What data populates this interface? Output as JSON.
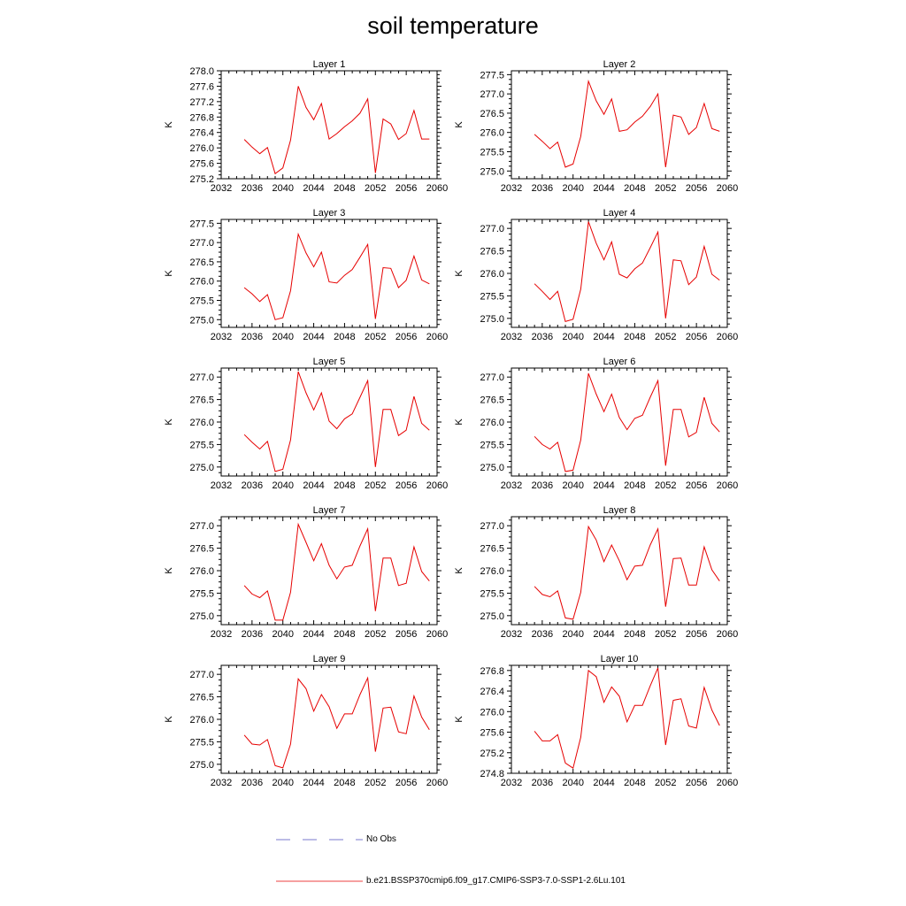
{
  "title": "soil temperature",
  "chart_data": [
    {
      "type": "line",
      "title": "Layer 1",
      "ylabel": "K",
      "xlim": [
        2032,
        2060
      ],
      "ylim": [
        275.2,
        278.0
      ],
      "xticks": [
        "2032",
        "2036",
        "2040",
        "2044",
        "2048",
        "2052",
        "2056",
        "2060"
      ],
      "yticks": [
        "275.2",
        "275.6",
        "276.0",
        "276.4",
        "276.8",
        "277.2",
        "277.6",
        "278.0"
      ],
      "x": [
        2035,
        2036,
        2037,
        2038,
        2039,
        2040,
        2041,
        2042,
        2043,
        2044,
        2045,
        2046,
        2047,
        2048,
        2049,
        2050,
        2051,
        2052,
        2053,
        2054,
        2055,
        2056,
        2057,
        2058,
        2059
      ],
      "values": [
        276.22,
        276.02,
        275.85,
        276.01,
        275.33,
        275.48,
        276.2,
        277.6,
        277.05,
        276.73,
        277.15,
        276.23,
        276.37,
        276.55,
        276.7,
        276.9,
        277.27,
        275.35,
        276.75,
        276.62,
        276.22,
        276.37,
        276.97,
        276.23,
        276.23
      ]
    },
    {
      "type": "line",
      "title": "Layer 2",
      "ylabel": "K",
      "xlim": [
        2032,
        2060
      ],
      "ylim": [
        274.8,
        277.6
      ],
      "xticks": [
        "2032",
        "2036",
        "2040",
        "2044",
        "2048",
        "2052",
        "2056",
        "2060"
      ],
      "yticks": [
        "275.0",
        "275.5",
        "276.0",
        "276.5",
        "277.0",
        "277.5"
      ],
      "x": [
        2035,
        2036,
        2037,
        2038,
        2039,
        2040,
        2041,
        2042,
        2043,
        2044,
        2045,
        2046,
        2047,
        2048,
        2049,
        2050,
        2051,
        2052,
        2053,
        2054,
        2055,
        2056,
        2057,
        2058,
        2059
      ],
      "values": [
        275.95,
        275.77,
        275.58,
        275.75,
        275.1,
        275.18,
        275.9,
        277.33,
        276.82,
        276.47,
        276.87,
        276.03,
        276.07,
        276.27,
        276.42,
        276.67,
        277.0,
        275.1,
        276.45,
        276.4,
        275.95,
        276.13,
        276.75,
        276.1,
        276.03
      ]
    },
    {
      "type": "line",
      "title": "Layer 3",
      "ylabel": "K",
      "xlim": [
        2032,
        2060
      ],
      "ylim": [
        274.8,
        277.6
      ],
      "xticks": [
        "2032",
        "2036",
        "2040",
        "2044",
        "2048",
        "2052",
        "2056",
        "2060"
      ],
      "yticks": [
        "275.0",
        "275.5",
        "276.0",
        "276.5",
        "277.0",
        "277.5"
      ],
      "x": [
        2035,
        2036,
        2037,
        2038,
        2039,
        2040,
        2041,
        2042,
        2043,
        2044,
        2045,
        2046,
        2047,
        2048,
        2049,
        2050,
        2051,
        2052,
        2053,
        2054,
        2055,
        2056,
        2057,
        2058,
        2059
      ],
      "values": [
        275.83,
        275.67,
        275.47,
        275.65,
        275.0,
        275.05,
        275.75,
        277.22,
        276.73,
        276.37,
        276.75,
        275.98,
        275.95,
        276.15,
        276.3,
        276.62,
        276.95,
        275.02,
        276.35,
        276.33,
        275.83,
        276.02,
        276.65,
        276.03,
        275.93
      ]
    },
    {
      "type": "line",
      "title": "Layer 4",
      "ylabel": "K",
      "xlim": [
        2032,
        2060
      ],
      "ylim": [
        274.8,
        277.2
      ],
      "xticks": [
        "2032",
        "2036",
        "2040",
        "2044",
        "2048",
        "2052",
        "2056",
        "2060"
      ],
      "yticks": [
        "275.0",
        "275.5",
        "276.0",
        "276.5",
        "277.0"
      ],
      "x": [
        2035,
        2036,
        2037,
        2038,
        2039,
        2040,
        2041,
        2042,
        2043,
        2044,
        2045,
        2046,
        2047,
        2048,
        2049,
        2050,
        2051,
        2052,
        2053,
        2054,
        2055,
        2056,
        2057,
        2058,
        2059
      ],
      "values": [
        275.77,
        275.6,
        275.42,
        275.6,
        274.93,
        274.98,
        275.65,
        277.15,
        276.67,
        276.3,
        276.7,
        275.98,
        275.9,
        276.1,
        276.23,
        276.57,
        276.92,
        275.0,
        276.3,
        276.28,
        275.75,
        275.92,
        276.6,
        275.98,
        275.85
      ]
    },
    {
      "type": "line",
      "title": "Layer 5",
      "ylabel": "K",
      "xlim": [
        2032,
        2060
      ],
      "ylim": [
        274.8,
        277.2
      ],
      "xticks": [
        "2032",
        "2036",
        "2040",
        "2044",
        "2048",
        "2052",
        "2056",
        "2060"
      ],
      "yticks": [
        "275.0",
        "275.5",
        "276.0",
        "276.5",
        "277.0"
      ],
      "x": [
        2035,
        2036,
        2037,
        2038,
        2039,
        2040,
        2041,
        2042,
        2043,
        2044,
        2045,
        2046,
        2047,
        2048,
        2049,
        2050,
        2051,
        2052,
        2053,
        2054,
        2055,
        2056,
        2057,
        2058,
        2059
      ],
      "values": [
        275.72,
        275.55,
        275.4,
        275.57,
        274.9,
        274.95,
        275.6,
        277.12,
        276.65,
        276.27,
        276.65,
        276.02,
        275.85,
        276.07,
        276.18,
        276.55,
        276.92,
        275.0,
        276.28,
        276.28,
        275.7,
        275.82,
        276.57,
        275.97,
        275.82
      ]
    },
    {
      "type": "line",
      "title": "Layer 6",
      "ylabel": "K",
      "xlim": [
        2032,
        2060
      ],
      "ylim": [
        274.8,
        277.2
      ],
      "xticks": [
        "2032",
        "2036",
        "2040",
        "2044",
        "2048",
        "2052",
        "2056",
        "2060"
      ],
      "yticks": [
        "275.0",
        "275.5",
        "276.0",
        "276.5",
        "277.0"
      ],
      "x": [
        2035,
        2036,
        2037,
        2038,
        2039,
        2040,
        2041,
        2042,
        2043,
        2044,
        2045,
        2046,
        2047,
        2048,
        2049,
        2050,
        2051,
        2052,
        2053,
        2054,
        2055,
        2056,
        2057,
        2058,
        2059
      ],
      "values": [
        275.68,
        275.5,
        275.4,
        275.55,
        274.9,
        274.93,
        275.6,
        277.08,
        276.62,
        276.23,
        276.62,
        276.1,
        275.83,
        276.08,
        276.15,
        276.55,
        276.92,
        275.03,
        276.28,
        276.28,
        275.67,
        275.77,
        276.55,
        275.97,
        275.78
      ]
    },
    {
      "type": "line",
      "title": "Layer 7",
      "ylabel": "K",
      "xlim": [
        2032,
        2060
      ],
      "ylim": [
        274.8,
        277.2
      ],
      "xticks": [
        "2032",
        "2036",
        "2040",
        "2044",
        "2048",
        "2052",
        "2056",
        "2060"
      ],
      "yticks": [
        "275.0",
        "275.5",
        "276.0",
        "276.5",
        "277.0"
      ],
      "x": [
        2035,
        2036,
        2037,
        2038,
        2039,
        2040,
        2041,
        2042,
        2043,
        2044,
        2045,
        2046,
        2047,
        2048,
        2049,
        2050,
        2051,
        2052,
        2053,
        2054,
        2055,
        2056,
        2057,
        2058,
        2059
      ],
      "values": [
        275.67,
        275.48,
        275.4,
        275.55,
        274.9,
        274.9,
        275.52,
        277.03,
        276.63,
        276.22,
        276.6,
        276.12,
        275.82,
        276.08,
        276.12,
        276.55,
        276.93,
        275.1,
        276.28,
        276.28,
        275.67,
        275.72,
        276.53,
        275.98,
        275.77
      ]
    },
    {
      "type": "line",
      "title": "Layer 8",
      "ylabel": "K",
      "xlim": [
        2032,
        2060
      ],
      "ylim": [
        274.8,
        277.2
      ],
      "xticks": [
        "2032",
        "2036",
        "2040",
        "2044",
        "2048",
        "2052",
        "2056",
        "2060"
      ],
      "yticks": [
        "275.0",
        "275.5",
        "276.0",
        "276.5",
        "277.0"
      ],
      "x": [
        2035,
        2036,
        2037,
        2038,
        2039,
        2040,
        2041,
        2042,
        2043,
        2044,
        2045,
        2046,
        2047,
        2048,
        2049,
        2050,
        2051,
        2052,
        2053,
        2054,
        2055,
        2056,
        2057,
        2058,
        2059
      ],
      "values": [
        275.65,
        275.47,
        275.42,
        275.55,
        274.95,
        274.92,
        275.52,
        276.98,
        276.68,
        276.2,
        276.57,
        276.22,
        275.8,
        276.1,
        276.12,
        276.57,
        276.93,
        275.2,
        276.27,
        276.28,
        275.68,
        275.68,
        276.53,
        276.02,
        275.77
      ]
    },
    {
      "type": "line",
      "title": "Layer 9",
      "ylabel": "K",
      "xlim": [
        2032,
        2060
      ],
      "ylim": [
        274.8,
        277.2
      ],
      "xticks": [
        "2032",
        "2036",
        "2040",
        "2044",
        "2048",
        "2052",
        "2056",
        "2060"
      ],
      "yticks": [
        "275.0",
        "275.5",
        "276.0",
        "276.5",
        "277.0"
      ],
      "x": [
        2035,
        2036,
        2037,
        2038,
        2039,
        2040,
        2041,
        2042,
        2043,
        2044,
        2045,
        2046,
        2047,
        2048,
        2049,
        2050,
        2051,
        2052,
        2053,
        2054,
        2055,
        2056,
        2057,
        2058,
        2059
      ],
      "values": [
        275.65,
        275.45,
        275.43,
        275.55,
        274.97,
        274.92,
        275.45,
        276.9,
        276.68,
        276.18,
        276.55,
        276.28,
        275.8,
        276.12,
        276.12,
        276.55,
        276.92,
        275.28,
        276.25,
        276.27,
        275.72,
        275.68,
        276.52,
        276.05,
        275.77
      ]
    },
    {
      "type": "line",
      "title": "Layer 10",
      "ylabel": "K",
      "xlim": [
        2032,
        2060
      ],
      "ylim": [
        274.8,
        276.9
      ],
      "xticks": [
        "2032",
        "2036",
        "2040",
        "2044",
        "2048",
        "2052",
        "2056",
        "2060"
      ],
      "yticks": [
        "274.8",
        "275.2",
        "275.6",
        "276.0",
        "276.4",
        "276.8"
      ],
      "x": [
        2035,
        2036,
        2037,
        2038,
        2039,
        2040,
        2041,
        2042,
        2043,
        2044,
        2045,
        2046,
        2047,
        2048,
        2049,
        2050,
        2051,
        2052,
        2053,
        2054,
        2055,
        2056,
        2057,
        2058,
        2059
      ],
      "values": [
        275.62,
        275.43,
        275.43,
        275.55,
        275.0,
        274.9,
        275.5,
        276.8,
        276.68,
        276.18,
        276.48,
        276.3,
        275.8,
        276.12,
        276.12,
        276.5,
        276.85,
        275.35,
        276.22,
        276.25,
        275.72,
        275.68,
        276.47,
        276.03,
        275.73
      ]
    }
  ],
  "legend": [
    {
      "label": "No Obs",
      "color": "#4f4fbf",
      "style": "dashed"
    },
    {
      "label": "b.e21.BSSP370cmip6.f09_g17.CMIP6-SSP3-7.0-SSP1-2.6Lu.101",
      "color": "#e60000",
      "style": "solid"
    }
  ]
}
